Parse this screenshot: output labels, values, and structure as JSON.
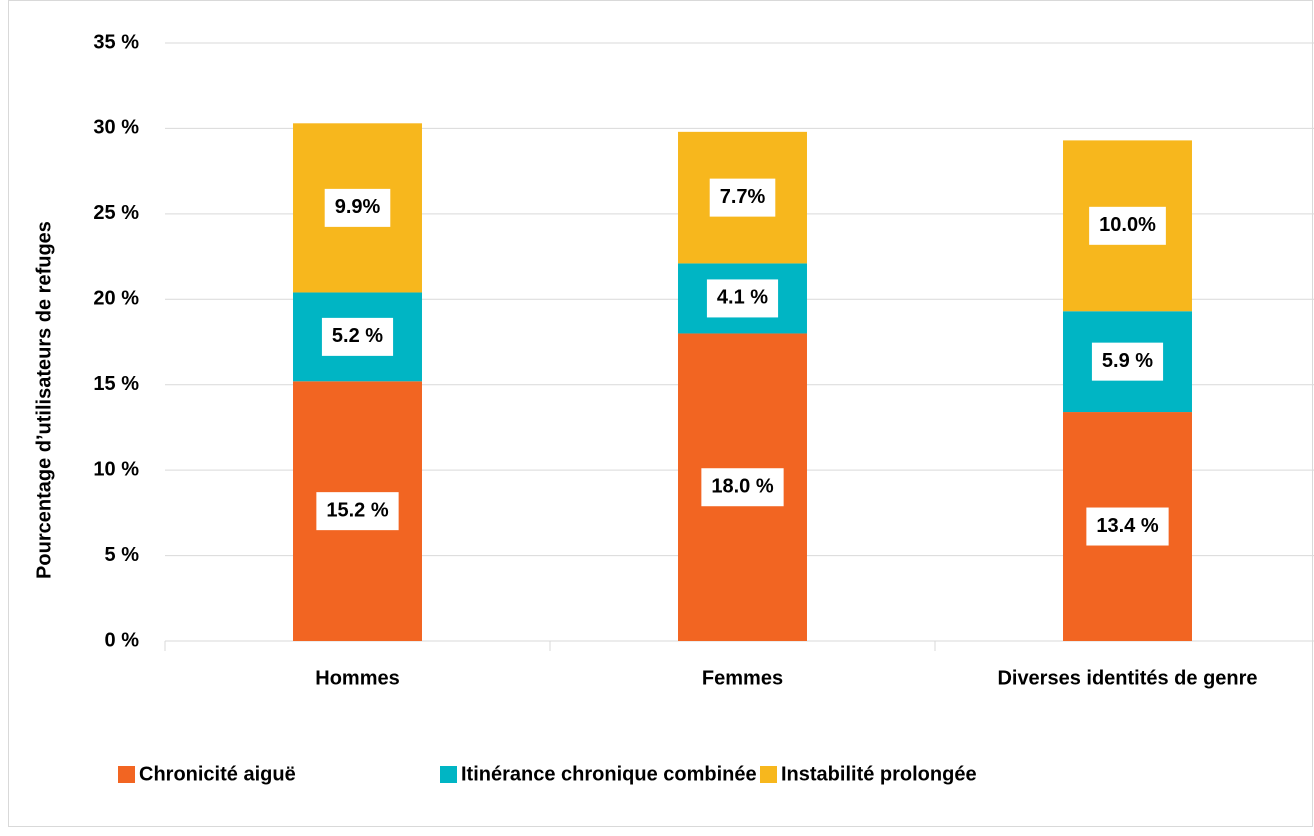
{
  "chart_data": {
    "type": "stacked_bar",
    "y_axis_label": "Pourcentage d’utilisateurs de refuges",
    "categories": [
      "Hommes",
      "Femmes",
      "Diverses identités de genre"
    ],
    "series": [
      {
        "name": "Chronicité aiguë",
        "color": "#f26522",
        "values": [
          15.2,
          18.0,
          13.4
        ],
        "value_labels": [
          "15.2 %",
          "18.0 %",
          "13.4 %"
        ]
      },
      {
        "name": "Itinérance chronique combinée",
        "color": "#00b5c4",
        "values": [
          5.2,
          4.1,
          5.9
        ],
        "value_labels": [
          "5.2 %",
          "4.1 %",
          "5.9 %"
        ]
      },
      {
        "name": "Instabilité prolongée",
        "color": "#f7b71d",
        "values": [
          9.9,
          7.7,
          10.0
        ],
        "value_labels": [
          "9.9%",
          "7.7%",
          "10.0%"
        ]
      }
    ],
    "ylim": [
      0,
      35
    ],
    "yticks": [
      {
        "value": 0,
        "label": "0 %"
      },
      {
        "value": 5,
        "label": "5 %"
      },
      {
        "value": 10,
        "label": "10 %"
      },
      {
        "value": 15,
        "label": "15 %"
      },
      {
        "value": 20,
        "label": "20 %"
      },
      {
        "value": 25,
        "label": "25 %"
      },
      {
        "value": 30,
        "label": "30 %"
      },
      {
        "value": 35,
        "label": "35 %"
      }
    ],
    "grid": true,
    "legend": "bottom"
  }
}
